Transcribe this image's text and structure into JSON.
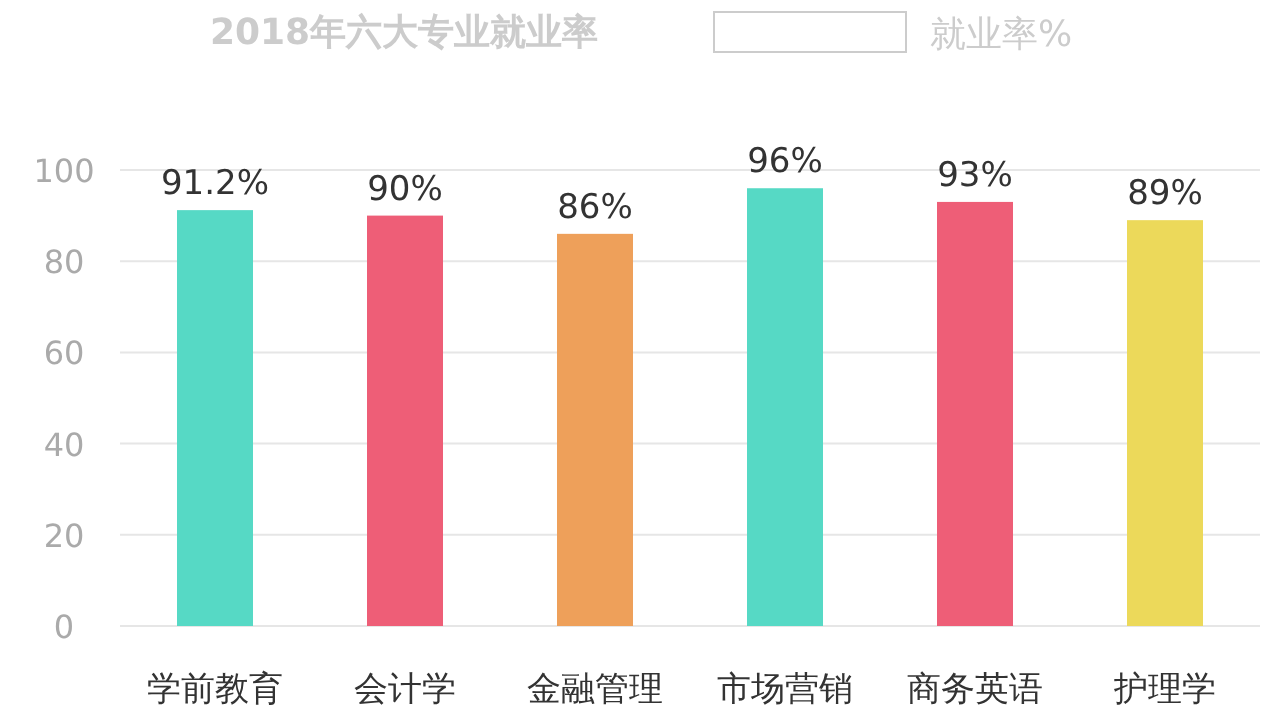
{
  "chart_data": {
    "type": "bar",
    "title": "2018年六大专业就业率",
    "categories": [
      "学前教育",
      "会计学",
      "金融管理",
      "市场营销",
      "商务英语",
      "护理学"
    ],
    "series": [
      {
        "name": "就业率%",
        "values": [
          91.2,
          90,
          86,
          96,
          93,
          89
        ],
        "colors": [
          "#56d9c5",
          "#ee5e77",
          "#eea05a",
          "#56d9c5",
          "#ee5e77",
          "#ecd95a"
        ],
        "value_labels": [
          "91.2%",
          "90%",
          "86%",
          "96%",
          "93%",
          "89%"
        ]
      }
    ],
    "ylim": [
      0,
      100
    ],
    "yticks": [
      0,
      20,
      40,
      60,
      80,
      100
    ],
    "grid": "y",
    "legend": "top"
  }
}
